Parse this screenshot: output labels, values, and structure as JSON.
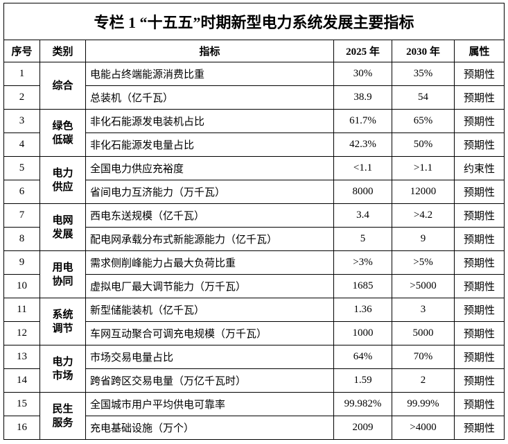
{
  "header": {
    "title": "专栏 1 “十五五”时期新型电力系统发展主要指标"
  },
  "table": {
    "columns": [
      "序号",
      "类别",
      "指标",
      "2025 年",
      "2030 年",
      "属性"
    ],
    "groups": [
      {
        "category": "综合",
        "rows": [
          [
            "1",
            "电能占终端能源消费比重",
            "30%",
            "35%",
            "预期性"
          ],
          [
            "2",
            "总装机（亿千瓦）",
            "38.9",
            "54",
            "预期性"
          ]
        ]
      },
      {
        "category": "绿色低碳",
        "rows": [
          [
            "3",
            "非化石能源发电装机占比",
            "61.7%",
            "65%",
            "预期性"
          ],
          [
            "4",
            "非化石能源发电量占比",
            "42.3%",
            "50%",
            "预期性"
          ]
        ]
      },
      {
        "category": "电力供应",
        "rows": [
          [
            "5",
            "全国电力供应充裕度",
            "<1.1",
            ">1.1",
            "约束性"
          ],
          [
            "6",
            "省间电力互济能力（万千瓦）",
            "8000",
            "12000",
            "预期性"
          ]
        ]
      },
      {
        "category": "电网发展",
        "rows": [
          [
            "7",
            "西电东送规模（亿千瓦）",
            "3.4",
            ">4.2",
            "预期性"
          ],
          [
            "8",
            "配电网承载分布式新能源能力（亿千瓦）",
            "5",
            "9",
            "预期性"
          ]
        ]
      },
      {
        "category": "用电协同",
        "rows": [
          [
            "9",
            "需求侧削峰能力占最大负荷比重",
            ">3%",
            ">5%",
            "预期性"
          ],
          [
            "10",
            "虚拟电厂最大调节能力（万千瓦）",
            "1685",
            ">5000",
            "预期性"
          ]
        ]
      },
      {
        "category": "系统调节",
        "rows": [
          [
            "11",
            "新型储能装机（亿千瓦）",
            "1.36",
            "3",
            "预期性"
          ],
          [
            "12",
            "车网互动聚合可调充电规模（万千瓦）",
            "1000",
            "5000",
            "预期性"
          ]
        ]
      },
      {
        "category": "电力市场",
        "rows": [
          [
            "13",
            "市场交易电量占比",
            "64%",
            "70%",
            "预期性"
          ],
          [
            "14",
            "跨省跨区交易电量（万亿千瓦时）",
            "1.59",
            "2",
            "预期性"
          ]
        ]
      },
      {
        "category": "民生服务",
        "rows": [
          [
            "15",
            "全国城市用户平均供电可靠率",
            "99.982%",
            "99.99%",
            "预期性"
          ],
          [
            "16",
            "充电基础设施（万个）",
            "2009",
            ">4000",
            "预期性"
          ]
        ]
      }
    ]
  }
}
